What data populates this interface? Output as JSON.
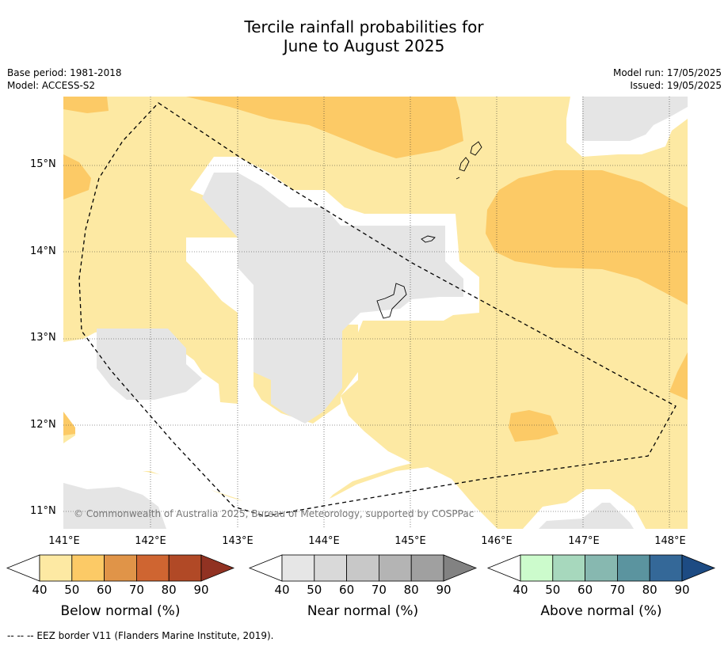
{
  "title_line1": "Tercile rainfall probabilities for",
  "title_line2": "June to August 2025",
  "meta_left": [
    "Base period: 1981-2018",
    "Model: ACCESS-S2"
  ],
  "meta_right": [
    "Model run: 17/05/2025",
    "Issued: 19/05/2025"
  ],
  "latitudes": [
    "15°N",
    "14°N",
    "13°N",
    "12°N",
    "11°N"
  ],
  "longitudes": [
    "141°E",
    "142°E",
    "143°E",
    "144°E",
    "145°E",
    "146°E",
    "147°E",
    "148°E"
  ],
  "copyright": "© Commonwealth of Australia 2025, Bureau of Meteorology, supported by COSPPac",
  "footer": "--  --  -- EEZ border V11 (Flanders Marine Institute, 2019).",
  "colorbars": [
    {
      "label": "Below normal (%)",
      "ticks": [
        "40",
        "50",
        "60",
        "70",
        "80",
        "90"
      ],
      "colors": [
        "#fde9a3",
        "#fcca66",
        "#e09448",
        "#cf6531",
        "#b14926",
        "#913222"
      ]
    },
    {
      "label": "Near normal (%)",
      "ticks": [
        "40",
        "50",
        "60",
        "70",
        "80",
        "90"
      ],
      "colors": [
        "#e6e6e6",
        "#d9d9d9",
        "#c8c8c8",
        "#b4b4b4",
        "#a0a0a0",
        "#828282"
      ]
    },
    {
      "label": "Above normal (%)",
      "ticks": [
        "40",
        "50",
        "60",
        "70",
        "80",
        "90"
      ],
      "colors": [
        "#ccfbcc",
        "#a7d8bd",
        "#87b8b0",
        "#5b949f",
        "#346898",
        "#1d4b83"
      ]
    }
  ]
}
